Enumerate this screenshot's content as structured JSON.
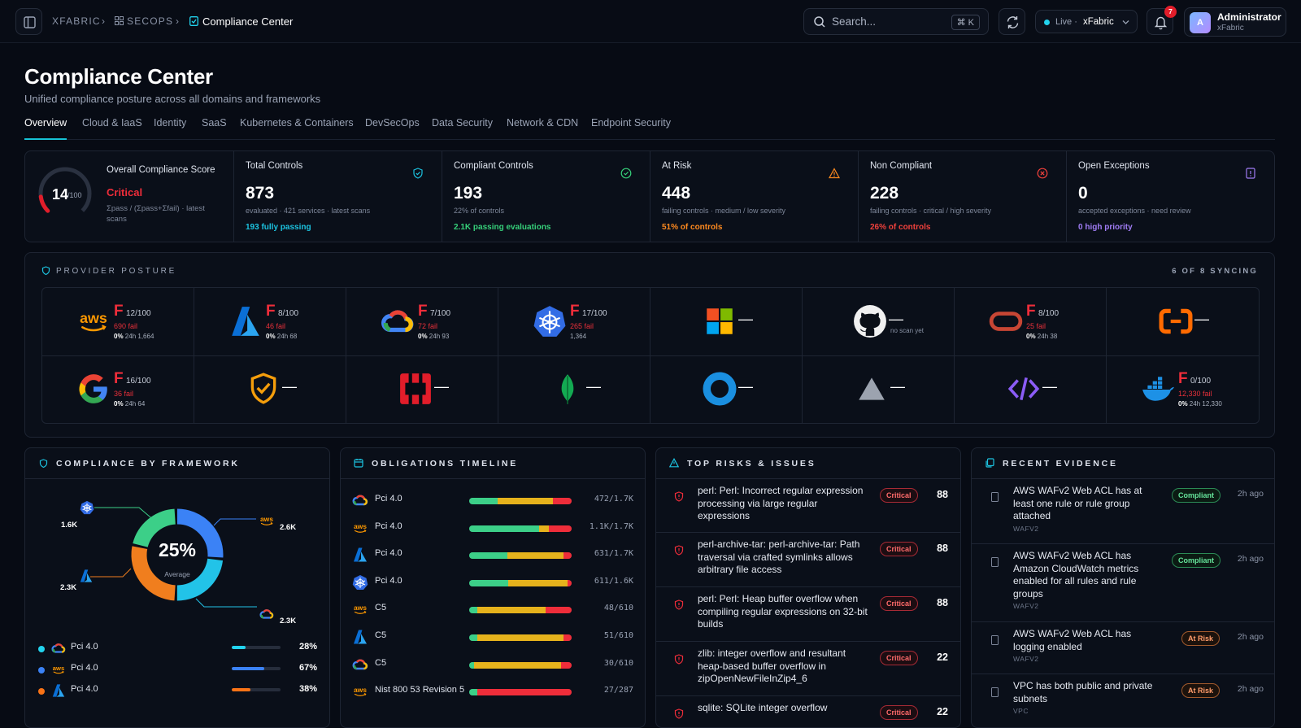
{
  "breadcrumb": {
    "root": "XFABRIC",
    "section": "SECOPS",
    "current": "Compliance Center"
  },
  "search": {
    "placeholder": "Search...",
    "shortcut": "⌘ K"
  },
  "env": {
    "status": "Live ·",
    "tenant": "xFabric"
  },
  "notifications": {
    "count": "7"
  },
  "user": {
    "initial": "A",
    "name": "Administrator",
    "org": "xFabric"
  },
  "page": {
    "title": "Compliance Center",
    "subtitle": "Unified compliance posture across all domains and frameworks"
  },
  "tabs": [
    "Overview",
    "Cloud & IaaS",
    "Identity",
    "SaaS",
    "Kubernetes & Containers",
    "DevSecOps",
    "Data Security",
    "Network & CDN",
    "Endpoint Security"
  ],
  "score": {
    "label": "Overall Compliance Score",
    "value": "14",
    "max": "/100",
    "fraction": 0.14,
    "status": "Critical",
    "formula": "Σpass / (Σpass+Σfail) · latest scans"
  },
  "kpis": [
    {
      "label": "Total Controls",
      "value": "873",
      "sub": "evaluated · 421 services · latest scans",
      "foot": "193 fully passing",
      "color": "#1cc3e0"
    },
    {
      "label": "Compliant Controls",
      "value": "193",
      "sub": "22% of controls",
      "foot": "2.1K passing evaluations",
      "color": "#36d07a"
    },
    {
      "label": "At Risk",
      "value": "448",
      "sub": "failing controls · medium / low severity",
      "foot": "51% of controls",
      "color": "#ff8a1f"
    },
    {
      "label": "Non Compliant",
      "value": "228",
      "sub": "failing controls · critical / high severity",
      "foot": "26% of controls",
      "color": "#f0413c"
    },
    {
      "label": "Open Exceptions",
      "value": "0",
      "sub": "accepted exceptions · need review",
      "foot": "0 high priority",
      "color": "#a07cf5"
    }
  ],
  "providers": {
    "title": "PROVIDER POSTURE",
    "syncing": "6 OF 8 SYNCING",
    "items": [
      {
        "icon": "aws-icon",
        "grade": "F",
        "score": "12/100",
        "fail": "690 fail",
        "pct": "0%",
        "meta": "24h 1,664"
      },
      {
        "icon": "azure-icon",
        "grade": "F",
        "score": "8/100",
        "fail": "46 fail",
        "pct": "0%",
        "meta": "24h 68"
      },
      {
        "icon": "gcp-icon",
        "grade": "F",
        "score": "7/100",
        "fail": "72 fail",
        "pct": "0%",
        "meta": "24h 93"
      },
      {
        "icon": "kubernetes-icon",
        "grade": "F",
        "score": "17/100",
        "fail": "265 fail",
        "pct": "",
        "meta": "1,364"
      },
      {
        "icon": "microsoft-icon",
        "dash": "—"
      },
      {
        "icon": "github-icon",
        "dash": "—",
        "note": "no scan yet"
      },
      {
        "icon": "oracle-icon",
        "grade": "F",
        "score": "8/100",
        "fail": "25 fail",
        "pct": "0%",
        "meta": "24h 38"
      },
      {
        "icon": "alibaba-icon",
        "dash": "—"
      },
      {
        "icon": "google-icon",
        "grade": "F",
        "score": "16/100",
        "fail": "36 fail",
        "pct": "0%",
        "meta": "24h 64"
      },
      {
        "icon": "shield-check-icon",
        "dash": "—"
      },
      {
        "icon": "openshift-icon",
        "dash": "—"
      },
      {
        "icon": "mongodb-icon",
        "dash": "—"
      },
      {
        "icon": "okta-icon",
        "dash": "—"
      },
      {
        "icon": "vercel-icon",
        "dash": "—"
      },
      {
        "icon": "code-icon",
        "dash": "—"
      },
      {
        "icon": "docker-icon",
        "grade": "F",
        "score": "0/100",
        "fail": "12,330 fail",
        "pct": "0%",
        "meta": "24h 12,330"
      }
    ]
  },
  "frameworks": {
    "title": "COMPLIANCE BY FRAMEWORK",
    "center_value": "25%",
    "center_label": "Average",
    "callouts": [
      {
        "value": "1.6K",
        "icon": "kubernetes-icon"
      },
      {
        "value": "2.6K",
        "icon": "aws-icon"
      },
      {
        "value": "2.3K",
        "icon": "azure-icon"
      },
      {
        "value": "2.3K",
        "icon": "gcp-icon"
      }
    ],
    "donut": [
      {
        "name": "aws",
        "share": 0.27,
        "color": "#3b82f6"
      },
      {
        "name": "gcp",
        "share": 0.24,
        "color": "#22c3e8"
      },
      {
        "name": "azure",
        "share": 0.28,
        "color": "#f07e1e"
      },
      {
        "name": "kubernetes",
        "share": 0.21,
        "color": "#3ccf88"
      }
    ],
    "rows": [
      {
        "label": "Pci 4.0",
        "icon": "gcp-icon",
        "pct": "28%",
        "value": 0.28,
        "color": "#22d3ee"
      },
      {
        "label": "Pci 4.0",
        "icon": "aws-icon",
        "pct": "67%",
        "value": 0.67,
        "color": "#3b82f6"
      },
      {
        "label": "Pci 4.0",
        "icon": "azure-icon",
        "pct": "38%",
        "value": 0.38,
        "color": "#f97316"
      }
    ]
  },
  "timeline": {
    "title": "OBLIGATIONS TIMELINE",
    "rows": [
      {
        "icon": "gcp-icon",
        "label": "Pci 4.0",
        "count": "472/1.7K",
        "segs": [
          0.28,
          0.54,
          0.18
        ]
      },
      {
        "icon": "aws-icon",
        "label": "Pci 4.0",
        "count": "1.1K/1.7K",
        "segs": [
          0.68,
          0.1,
          0.22
        ]
      },
      {
        "icon": "azure-icon",
        "label": "Pci 4.0",
        "count": "631/1.7K",
        "segs": [
          0.37,
          0.55,
          0.08
        ]
      },
      {
        "icon": "kubernetes-icon",
        "label": "Pci 4.0",
        "count": "611/1.6K",
        "segs": [
          0.38,
          0.58,
          0.04
        ]
      },
      {
        "icon": "aws-icon",
        "label": "C5",
        "count": "48/610",
        "segs": [
          0.08,
          0.67,
          0.25
        ]
      },
      {
        "icon": "azure-icon",
        "label": "C5",
        "count": "51/610",
        "segs": [
          0.08,
          0.84,
          0.08
        ]
      },
      {
        "icon": "gcp-icon",
        "label": "C5",
        "count": "30/610",
        "segs": [
          0.05,
          0.85,
          0.1
        ]
      },
      {
        "icon": "aws-icon",
        "label": "Nist 800 53 Revision 5",
        "count": "27/287",
        "segs": [
          0.08,
          0.0,
          0.92
        ]
      }
    ]
  },
  "risks": {
    "title": "TOP RISKS & ISSUES",
    "rows": [
      {
        "text": "perl: Perl: Incorrect regular expression processing via large regular expressions",
        "badge": "Critical",
        "score": "88"
      },
      {
        "text": "perl-archive-tar: perl-archive-tar: Path traversal via crafted symlinks allows arbitrary file access",
        "badge": "Critical",
        "score": "88"
      },
      {
        "text": "perl: Perl: Heap buffer overflow when compiling regular expressions on 32-bit builds",
        "badge": "Critical",
        "score": "88"
      },
      {
        "text": "zlib: integer overflow and resultant heap-based buffer overflow in zipOpenNewFileInZip4_6",
        "badge": "Critical",
        "score": "22"
      },
      {
        "text": "sqlite: SQLite integer overflow",
        "badge": "Critical",
        "score": "22"
      }
    ]
  },
  "evidence": {
    "title": "RECENT EVIDENCE",
    "rows": [
      {
        "text": "AWS WAFv2 Web ACL has at least one rule or rule group attached",
        "sub": "WAFV2",
        "badge": "Compliant",
        "kind": "comp",
        "time": "2h ago"
      },
      {
        "text": "AWS WAFv2 Web ACL has Amazon CloudWatch metrics enabled for all rules and rule groups",
        "sub": "WAFV2",
        "badge": "Compliant",
        "kind": "comp",
        "time": "2h ago"
      },
      {
        "text": "AWS WAFv2 Web ACL has logging enabled",
        "sub": "WAFV2",
        "badge": "At Risk",
        "kind": "risk",
        "time": "2h ago"
      },
      {
        "text": "VPC has both public and private subnets",
        "sub": "VPC",
        "badge": "At Risk",
        "kind": "risk",
        "time": "2h ago"
      }
    ]
  }
}
